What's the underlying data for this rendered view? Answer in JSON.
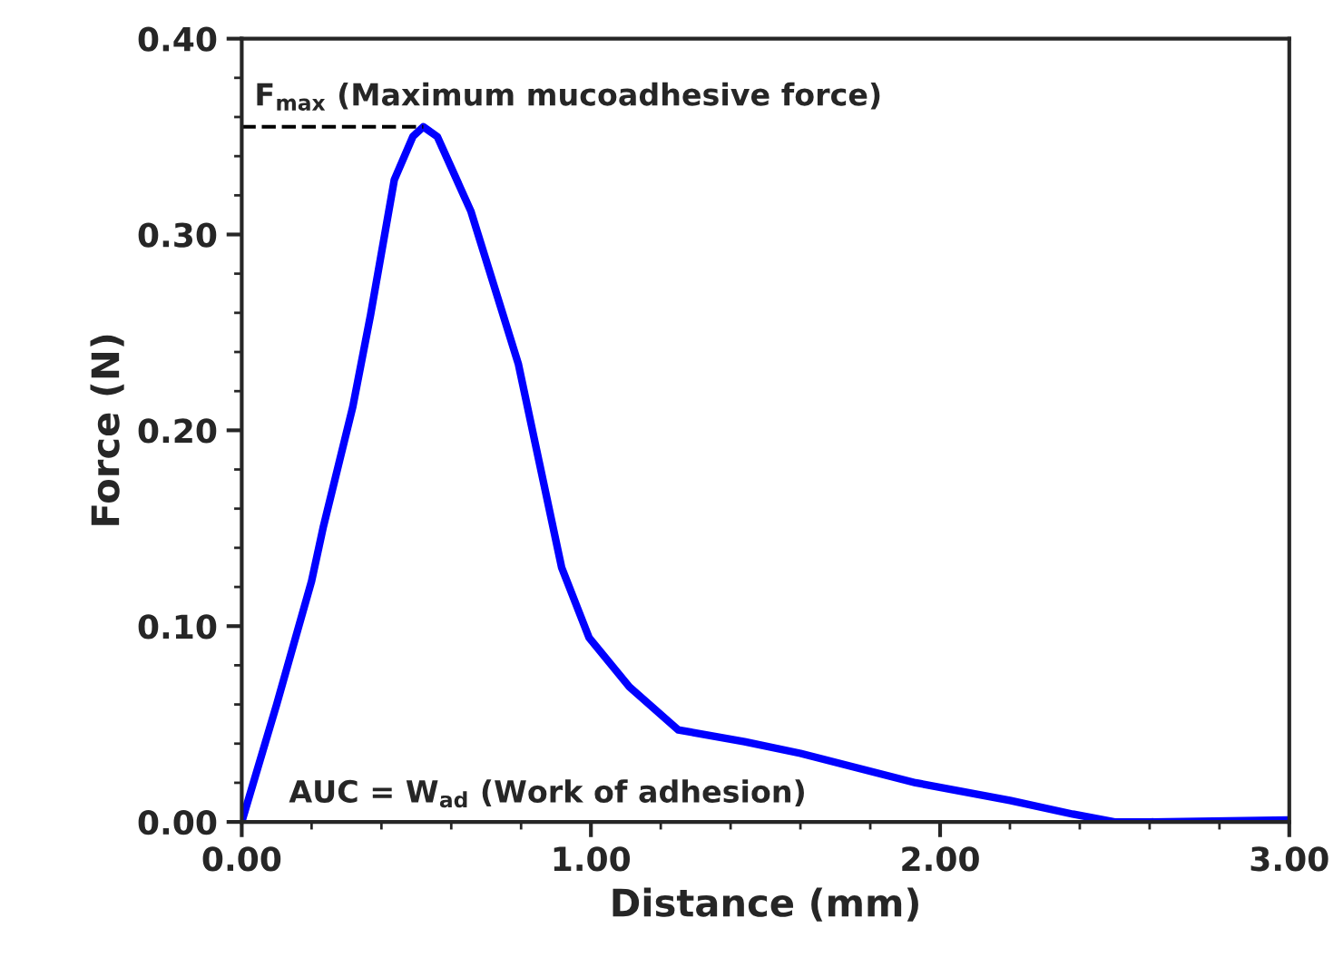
{
  "chart_data": {
    "type": "line",
    "xlabel": "Distance (mm)",
    "ylabel": "Force (N)",
    "xlim": [
      0,
      3
    ],
    "ylim": [
      0,
      0.4
    ],
    "xticks": [
      {
        "value": 0,
        "label": "0.00"
      },
      {
        "value": 1,
        "label": "1.00"
      },
      {
        "value": 2,
        "label": "2.00"
      },
      {
        "value": 3,
        "label": "3.00"
      }
    ],
    "yticks": [
      {
        "value": 0,
        "label": "0.00"
      },
      {
        "value": 0.1,
        "label": "0.10"
      },
      {
        "value": 0.2,
        "label": "0.20"
      },
      {
        "value": 0.3,
        "label": "0.30"
      },
      {
        "value": 0.4,
        "label": "0.40"
      }
    ],
    "grid": false,
    "marker": "none",
    "series": [
      {
        "color": "#0000ff",
        "line_style": "solid",
        "x": [
          0,
          0.1,
          0.165,
          0.2,
          0.234,
          0.318,
          0.369,
          0.437,
          0.49,
          0.52,
          0.56,
          0.656,
          0.792,
          0.916,
          0.995,
          1.11,
          1.25,
          1.44,
          1.6,
          1.93,
          2.2,
          2.38,
          2.5,
          2.6,
          3.0
        ],
        "values": [
          0,
          0.06,
          0.101,
          0.123,
          0.151,
          0.212,
          0.259,
          0.328,
          0.35,
          0.355,
          0.35,
          0.312,
          0.234,
          0.13,
          0.094,
          0.069,
          0.047,
          0.041,
          0.035,
          0.02,
          0.011,
          0.004,
          0.0,
          0.0,
          0.001
        ]
      },
      {
        "color": "#000000",
        "line_style": "dashed",
        "x": [
          0,
          0.52
        ],
        "values": [
          0.355,
          0.355
        ]
      }
    ],
    "annotations": [
      {
        "text": "F$_{max}$ (Maximum mucoadhesive force)",
        "x": 0.52,
        "y": 0.355
      },
      "AUC = W$_{ad}$ (Work of adhesion)"
    ]
  }
}
